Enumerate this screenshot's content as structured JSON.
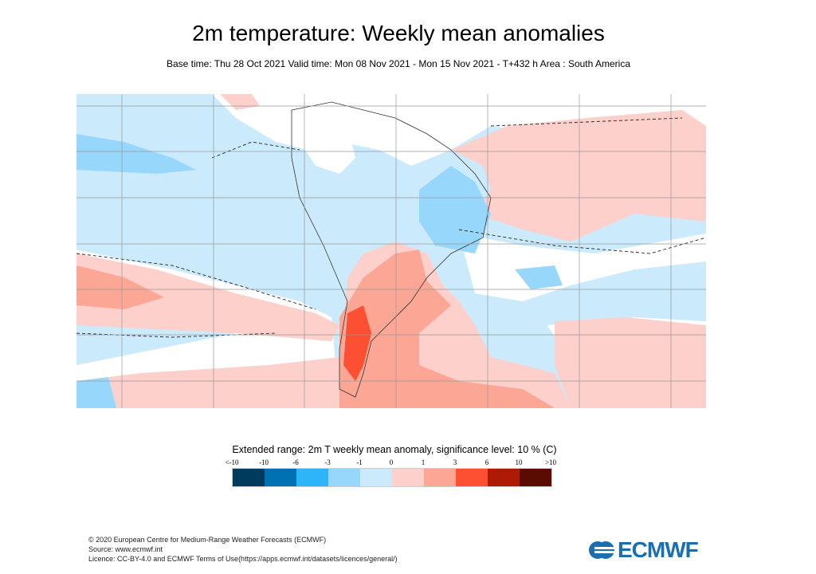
{
  "title": "2m temperature: Weekly mean anomalies",
  "subtitle": "Base time: Thu 28 Oct 2021 Valid time: Mon 08 Nov 2021 - Mon 15 Nov 2021 - T+432 h Area : South America",
  "map": {
    "area": "South America",
    "variable": "2m temperature weekly mean anomaly"
  },
  "legend": {
    "title": "Extended range: 2m T weekly mean anomaly, significance level: 10 % (C)",
    "ticks": [
      "<-10",
      "-10",
      "-6",
      "-3",
      "-1",
      "0",
      "1",
      "3",
      "6",
      "10",
      ">10"
    ],
    "colors": [
      "#003a5c",
      "#0072b3",
      "#2eb4f8",
      "#98d7fc",
      "#cbebfd",
      "#fdd0cb",
      "#fca796",
      "#fd4f31",
      "#ae1a06",
      "#5a0b02"
    ]
  },
  "footer": {
    "line1": "© 2020 European Centre for Medium-Range Weather Forecasts (ECMWF)",
    "line2": "Source: www.ecmwf.int",
    "line3": "Licence: CC-BY-4.0 and ECMWF Terms of Use(https://apps.ecmwf.int/datasets/licences/general/)"
  },
  "logo": {
    "text": "ECMWF"
  }
}
